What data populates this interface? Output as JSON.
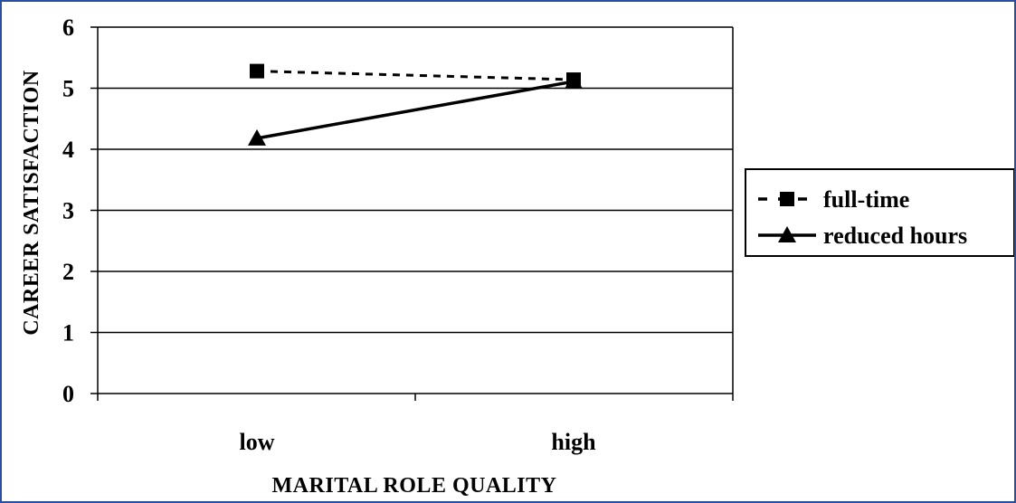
{
  "chart_data": {
    "type": "line",
    "title": "",
    "xlabel": "MARITAL ROLE QUALITY",
    "ylabel": "CAREER SATISFACTION",
    "categories": [
      "low",
      "high"
    ],
    "ylim": [
      0,
      6
    ],
    "yticks": [
      0,
      1,
      2,
      3,
      4,
      5,
      6
    ],
    "grid": true,
    "legend_position": "right",
    "series": [
      {
        "name": "full-time",
        "values": [
          5.28,
          5.14
        ],
        "style": "dashed",
        "marker": "square",
        "color": "#000000"
      },
      {
        "name": "reduced hours",
        "values": [
          4.18,
          5.11
        ],
        "style": "solid",
        "marker": "triangle",
        "color": "#000000"
      }
    ]
  },
  "colors": {
    "border": "#2a4fa0",
    "ink": "#000000"
  }
}
